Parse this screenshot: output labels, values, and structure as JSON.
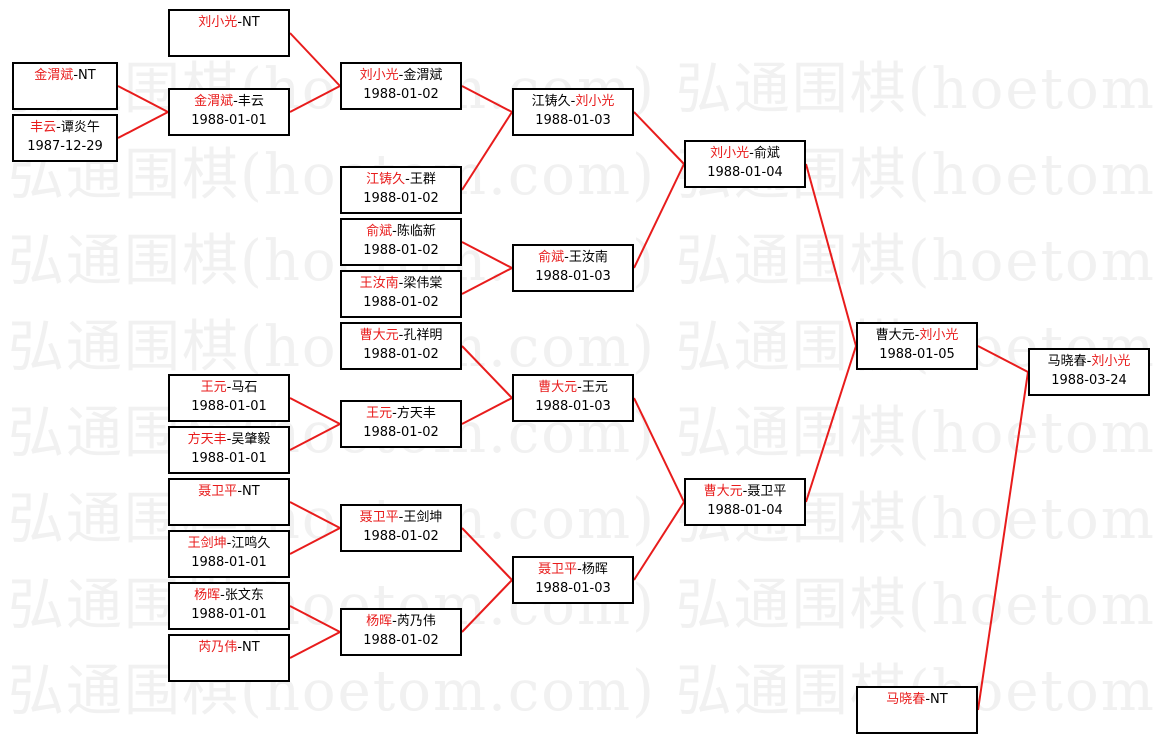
{
  "watermark": "弘通围棋(hoetom.com) 弘通围棋(hoetom.com)",
  "colors": {
    "winner": "#e81c1c",
    "connector": "#e81c1c",
    "border": "#000000"
  },
  "matches": {
    "m01": {
      "p1": "金渭斌",
      "p2": "NT",
      "winner": 1,
      "date": ""
    },
    "m02": {
      "p1": "丰云",
      "p2": "谭炎午",
      "winner": 1,
      "date": "1987-12-29"
    },
    "m11": {
      "p1": "刘小光",
      "p2": "NT",
      "winner": 1,
      "date": ""
    },
    "m12": {
      "p1": "金渭斌",
      "p2": "丰云",
      "winner": 1,
      "date": "1988-01-01"
    },
    "m13": {
      "p1": "王元",
      "p2": "马石",
      "winner": 1,
      "date": "1988-01-01"
    },
    "m14": {
      "p1": "方天丰",
      "p2": "吴肇毅",
      "winner": 1,
      "date": "1988-01-01"
    },
    "m15": {
      "p1": "聂卫平",
      "p2": "NT",
      "winner": 1,
      "date": ""
    },
    "m16": {
      "p1": "王剑坤",
      "p2": "江鸣久",
      "winner": 1,
      "date": "1988-01-01"
    },
    "m17": {
      "p1": "杨晖",
      "p2": "张文东",
      "winner": 1,
      "date": "1988-01-01"
    },
    "m18": {
      "p1": "芮乃伟",
      "p2": "NT",
      "winner": 1,
      "date": ""
    },
    "m21": {
      "p1": "刘小光",
      "p2": "金渭斌",
      "winner": 1,
      "date": "1988-01-02"
    },
    "m22": {
      "p1": "江铸久",
      "p2": "王群",
      "winner": 1,
      "date": "1988-01-02"
    },
    "m23": {
      "p1": "俞斌",
      "p2": "陈临新",
      "winner": 1,
      "date": "1988-01-02"
    },
    "m24": {
      "p1": "王汝南",
      "p2": "梁伟棠",
      "winner": 1,
      "date": "1988-01-02"
    },
    "m25": {
      "p1": "曹大元",
      "p2": "孔祥明",
      "winner": 1,
      "date": "1988-01-02"
    },
    "m26": {
      "p1": "王元",
      "p2": "方天丰",
      "winner": 1,
      "date": "1988-01-02"
    },
    "m27": {
      "p1": "聂卫平",
      "p2": "王剑坤",
      "winner": 1,
      "date": "1988-01-02"
    },
    "m28": {
      "p1": "杨晖",
      "p2": "芮乃伟",
      "winner": 1,
      "date": "1988-01-02"
    },
    "m31": {
      "p1": "江铸久",
      "p2": "刘小光",
      "winner": 2,
      "date": "1988-01-03"
    },
    "m32": {
      "p1": "俞斌",
      "p2": "王汝南",
      "winner": 1,
      "date": "1988-01-03"
    },
    "m33": {
      "p1": "曹大元",
      "p2": "王元",
      "winner": 1,
      "date": "1988-01-03"
    },
    "m34": {
      "p1": "聂卫平",
      "p2": "杨晖",
      "winner": 1,
      "date": "1988-01-03"
    },
    "m41": {
      "p1": "刘小光",
      "p2": "俞斌",
      "winner": 1,
      "date": "1988-01-04"
    },
    "m42": {
      "p1": "曹大元",
      "p2": "聂卫平",
      "winner": 1,
      "date": "1988-01-04"
    },
    "m51": {
      "p1": "曹大元",
      "p2": "刘小光",
      "winner": 2,
      "date": "1988-01-05"
    },
    "m52": {
      "p1": "马晓春",
      "p2": "NT",
      "winner": 1,
      "date": ""
    },
    "m61": {
      "p1": "马晓春",
      "p2": "刘小光",
      "winner": 2,
      "date": "1988-03-24"
    }
  }
}
